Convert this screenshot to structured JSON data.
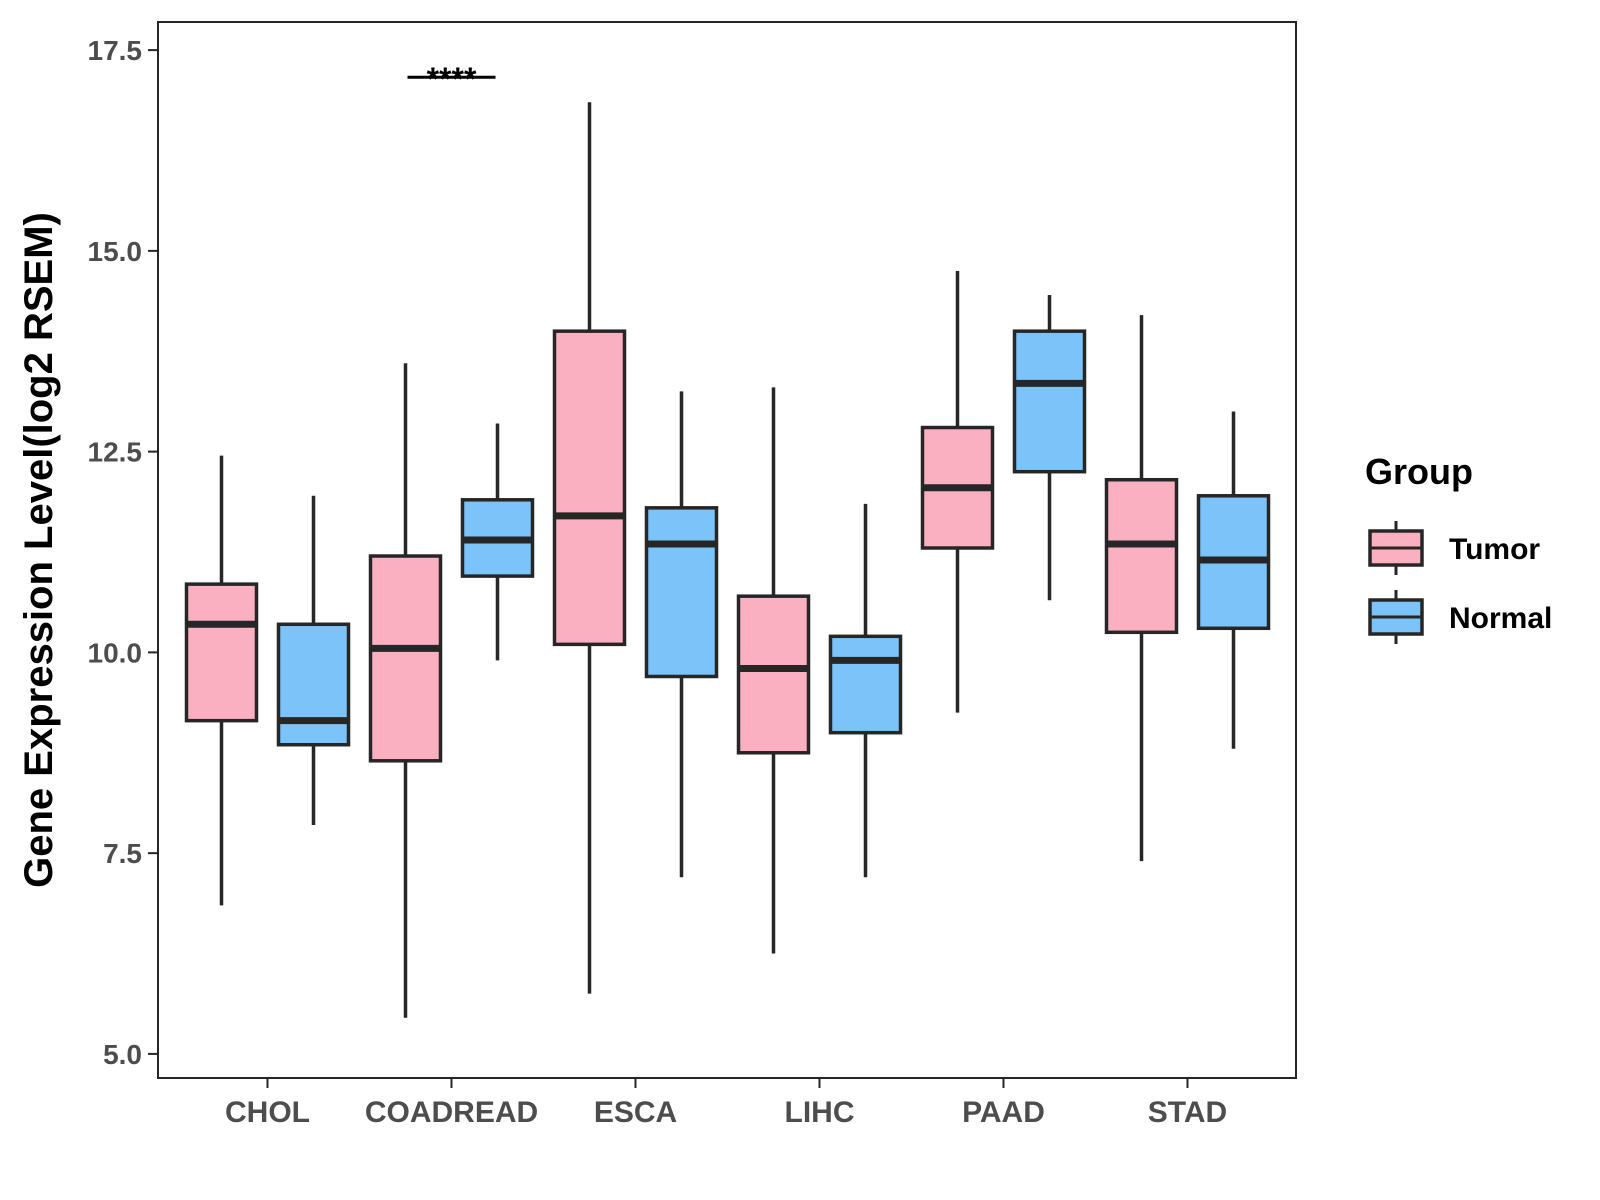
{
  "chart_data": {
    "type": "boxplot",
    "title": "",
    "xlabel": "",
    "ylabel": "Gene Expression Level(log2 RSEM)",
    "ylim": [
      4.7,
      17.85
    ],
    "yticks": [
      "5.0",
      "7.5",
      "10.0",
      "12.5",
      "15.0",
      "17.5"
    ],
    "categories": [
      "CHOL",
      "COADREAD",
      "ESCA",
      "LIHC",
      "PAAD",
      "STAD"
    ],
    "legend": {
      "title": "Group",
      "position": "right",
      "entries": [
        {
          "name": "Tumor",
          "color": "#fbb0c2"
        },
        {
          "name": "Normal",
          "color": "#7bc3f8"
        }
      ]
    },
    "series": [
      {
        "name": "Tumor",
        "color": "#fbb0c2",
        "boxes": [
          {
            "min": 6.85,
            "q1": 9.15,
            "median": 10.35,
            "q3": 10.85,
            "max": 12.45
          },
          {
            "min": 5.45,
            "q1": 8.65,
            "median": 10.05,
            "q3": 11.2,
            "max": 13.6
          },
          {
            "min": 5.75,
            "q1": 10.1,
            "median": 11.7,
            "q3": 14.0,
            "max": 16.85
          },
          {
            "min": 6.25,
            "q1": 8.75,
            "median": 9.8,
            "q3": 10.7,
            "max": 13.3
          },
          {
            "min": 9.25,
            "q1": 11.3,
            "median": 12.05,
            "q3": 12.8,
            "max": 14.75
          },
          {
            "min": 7.4,
            "q1": 10.25,
            "median": 11.35,
            "q3": 12.15,
            "max": 14.2
          }
        ]
      },
      {
        "name": "Normal",
        "color": "#7bc3f8",
        "boxes": [
          {
            "min": 7.85,
            "q1": 8.85,
            "median": 9.15,
            "q3": 10.35,
            "max": 11.95
          },
          {
            "min": 9.9,
            "q1": 10.95,
            "median": 11.4,
            "q3": 11.9,
            "max": 12.85
          },
          {
            "min": 7.2,
            "q1": 9.7,
            "median": 11.35,
            "q3": 11.8,
            "max": 13.25
          },
          {
            "min": 7.2,
            "q1": 9.0,
            "median": 9.9,
            "q3": 10.2,
            "max": 11.85
          },
          {
            "min": 10.65,
            "q1": 12.25,
            "median": 13.35,
            "q3": 14.0,
            "max": 14.45
          },
          {
            "min": 8.8,
            "q1": 10.3,
            "median": 11.15,
            "q3": 11.95,
            "max": 13.0
          }
        ]
      }
    ],
    "annotations": [
      {
        "category": "COADREAD",
        "text": "****",
        "y": 17.2
      }
    ]
  },
  "colors": {
    "tumor": "#fbb0c2",
    "normal": "#7bc3f8",
    "outline": "#262626",
    "axis_text": "#4d4d4d"
  }
}
